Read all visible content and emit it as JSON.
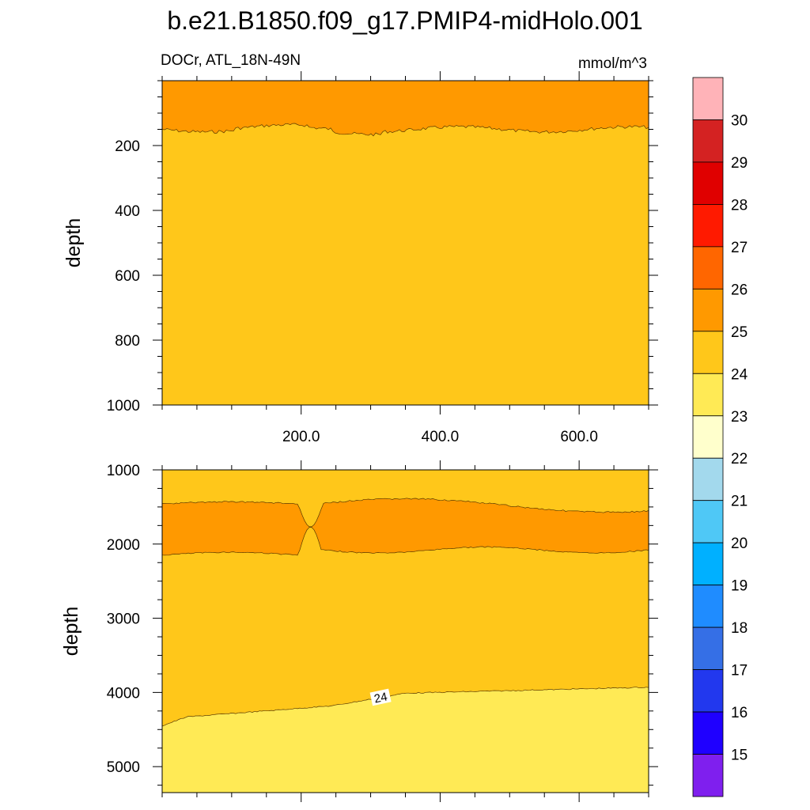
{
  "chart_data": {
    "type": "filled-contour",
    "title": "b.e21.B1850.f09_g17.PMIP4-midHolo.001",
    "variable_label": "DOCr, ATL_18N-49N",
    "units": "mmol/m^3",
    "x_range": [
      0,
      700
    ],
    "x_tick_labels": [
      "200.0",
      "400.0",
      "600.0"
    ],
    "x_tick_values": [
      200,
      400,
      600
    ],
    "panels": [
      {
        "name": "upper",
        "ylabel": "depth",
        "ylim": [
          0,
          1000
        ],
        "y_ticks": [
          200,
          400,
          600,
          800,
          1000
        ],
        "y_tick_labels": [
          "200",
          "400",
          "600",
          "800",
          "1000"
        ],
        "bands": [
          {
            "range": "25-26",
            "color": "#ff9900",
            "description": "surface layer down to ~150"
          },
          {
            "range": "24-25",
            "color": "#ffc71a",
            "description": "~150 to 1000"
          }
        ],
        "contours": [
          {
            "level": 25,
            "mean_depth": 150
          }
        ]
      },
      {
        "name": "lower",
        "ylabel": "depth",
        "ylim": [
          1000,
          5350
        ],
        "y_ticks": [
          1000,
          2000,
          3000,
          4000,
          5000
        ],
        "y_tick_labels": [
          "1000",
          "2000",
          "3000",
          "4000",
          "5000"
        ],
        "bands": [
          {
            "range": "24-25",
            "color": "#ffc71a"
          },
          {
            "range": "25-26",
            "color": "#ff9900",
            "description": "lens ~1400-2150 pinched near x~220"
          },
          {
            "range": "23-24",
            "color": "#ffea55",
            "description": "bottom layer below ~4000-4450"
          }
        ],
        "contours": [
          {
            "level": 25,
            "description": "bounds of 25-26 lens"
          },
          {
            "level": 24,
            "label": "24",
            "depth_left": 4450,
            "depth_right": 3930
          }
        ]
      }
    ],
    "colorbar": {
      "labels": [
        "30",
        "29",
        "28",
        "27",
        "26",
        "25",
        "24",
        "23",
        "22",
        "21",
        "20",
        "19",
        "18",
        "17",
        "16",
        "15"
      ],
      "colors": [
        "#ffb3b8",
        "#d42222",
        "#e00000",
        "#ff1a00",
        "#ff6600",
        "#ff9900",
        "#ffc71a",
        "#ffea55",
        "#ffffcc",
        "#a3d9ed",
        "#4fc8f6",
        "#00b0ff",
        "#1f8cff",
        "#356fe6",
        "#2238ee",
        "#1f00ff",
        "#7f1fee"
      ]
    }
  }
}
